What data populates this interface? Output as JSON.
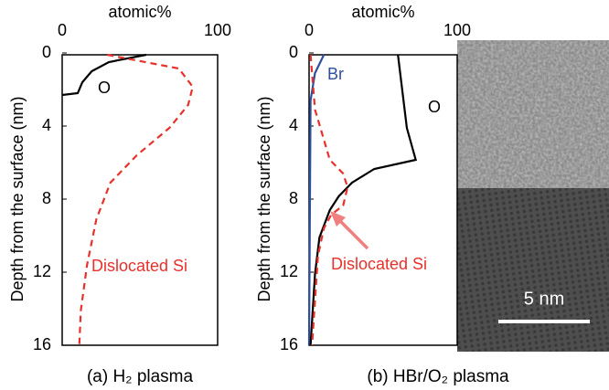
{
  "chart_data": [
    {
      "type": "line",
      "x_label": "atomic%",
      "y_label": "Depth from the surface (nm)",
      "caption": "(a) H₂ plasma",
      "xlim": [
        0,
        100
      ],
      "xticks": [
        0,
        100
      ],
      "ylim": [
        16,
        0
      ],
      "yticks": [
        0,
        4,
        8,
        12,
        16
      ],
      "series": [
        {
          "name": "O",
          "color": "#000000",
          "dash": false,
          "x": [
            54,
            30,
            19,
            13,
            10,
            0
          ],
          "y": [
            0.1,
            0.5,
            1,
            1.6,
            2.2,
            2.3
          ]
        },
        {
          "name": "Dislocated Si",
          "color": "#e8312b",
          "dash": true,
          "x": [
            29,
            75,
            84,
            81,
            69,
            48,
            31,
            22,
            16,
            12,
            11
          ],
          "y": [
            0.1,
            0.85,
            1.85,
            2.85,
            4.1,
            5.6,
            7.1,
            9.1,
            11.6,
            14.1,
            16
          ]
        }
      ]
    },
    {
      "type": "line",
      "x_label": "atomic%",
      "y_label": "Depth from the surface (nm)",
      "caption": "(b) HBr/O₂ plasma",
      "xlim": [
        0,
        100
      ],
      "xticks": [
        0,
        100
      ],
      "ylim": [
        16,
        0
      ],
      "yticks": [
        0,
        4,
        8,
        12,
        16
      ],
      "series": [
        {
          "name": "Br",
          "color": "#2e4f9e",
          "dash": false,
          "x": [
            10,
            4,
            1,
            0
          ],
          "y": [
            0.1,
            1.1,
            2.6,
            16
          ]
        },
        {
          "name": "O",
          "color": "#000000",
          "dash": false,
          "x": [
            60,
            63,
            66,
            72,
            44,
            29,
            20,
            14,
            7,
            4,
            1
          ],
          "y": [
            0.1,
            2.1,
            4.1,
            5.85,
            6.35,
            7.1,
            7.85,
            8.6,
            10.1,
            12.1,
            16
          ]
        },
        {
          "name": "Dislocated Si",
          "color": "#e8312b",
          "dash": true,
          "x": [
            1,
            4,
            14,
            23,
            26,
            23,
            15,
            10,
            6,
            2
          ],
          "y": [
            0.1,
            3.1,
            5.85,
            6.6,
            7.35,
            8.35,
            8.85,
            9.6,
            11.1,
            16
          ]
        }
      ]
    }
  ],
  "image": {
    "scale_label": "5 nm"
  }
}
